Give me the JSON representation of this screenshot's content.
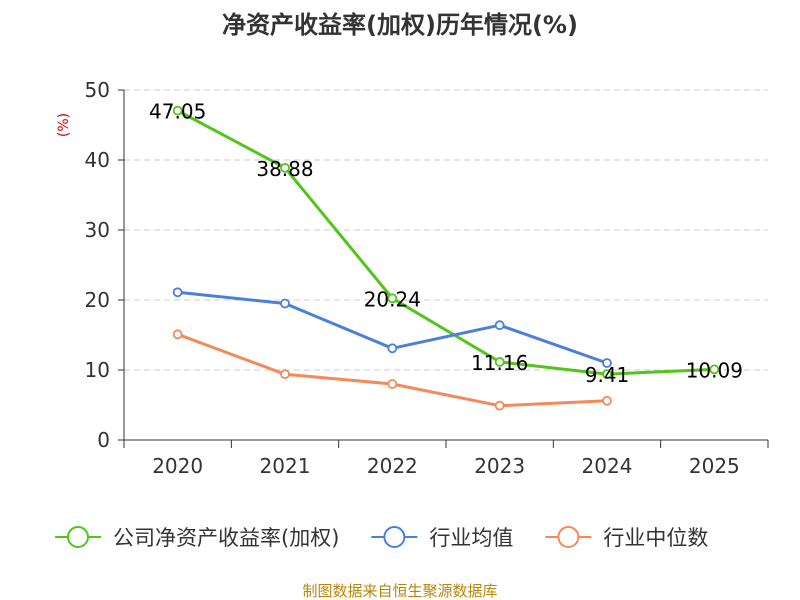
{
  "chart_data": {
    "type": "line",
    "title": "净资产收益率(加权)历年情况(%)",
    "ylabel": "(%)",
    "xlabel": "",
    "categories": [
      "2020",
      "2021",
      "2022",
      "2023",
      "2024",
      "2025"
    ],
    "ylim": [
      0,
      50
    ],
    "yticks": [
      0,
      10,
      20,
      30,
      40,
      50
    ],
    "grid": true,
    "legend_position": "bottom",
    "series": [
      {
        "name": "公司净资产收益率(加权)",
        "color": "#52c41a",
        "values": [
          47.05,
          38.88,
          20.24,
          11.16,
          9.41,
          10.09
        ],
        "labels": [
          "47.05",
          "38.88",
          "20.24",
          "11.16",
          "9.41",
          "10.09"
        ]
      },
      {
        "name": "行业均值",
        "color": "#4a7fdc",
        "values": [
          21.1,
          19.5,
          13.1,
          16.4,
          11.0,
          null
        ]
      },
      {
        "name": "行业中位数",
        "color": "#f4895a",
        "values": [
          15.1,
          9.4,
          8.0,
          4.9,
          5.6,
          null
        ]
      }
    ]
  },
  "source": "制图数据来自恒生聚源数据库"
}
